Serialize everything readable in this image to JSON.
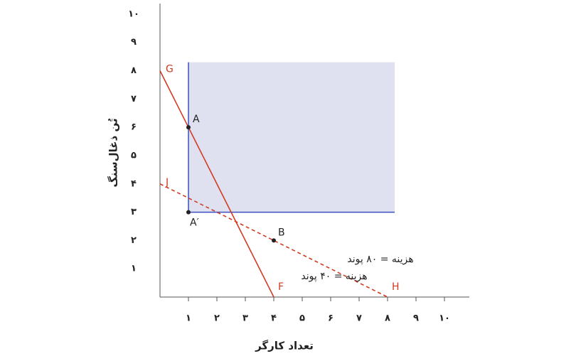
{
  "chart_data": {
    "type": "line",
    "x_label": "تعداد کارگر",
    "y_label": "تُن ذغال‌سنگ",
    "xlim": [
      0,
      11
    ],
    "ylim": [
      0,
      10.5
    ],
    "xticks": [
      {
        "value": 1,
        "label": "۱"
      },
      {
        "value": 2,
        "label": "۲"
      },
      {
        "value": 3,
        "label": "۳"
      },
      {
        "value": 4,
        "label": "۴"
      },
      {
        "value": 5,
        "label": "۵"
      },
      {
        "value": 6,
        "label": "۶"
      },
      {
        "value": 7,
        "label": "۷"
      },
      {
        "value": 8,
        "label": "۸"
      },
      {
        "value": 9,
        "label": "۹"
      },
      {
        "value": 10,
        "label": "۱۰"
      }
    ],
    "yticks": [
      {
        "value": 1,
        "label": "۱"
      },
      {
        "value": 2,
        "label": "۲"
      },
      {
        "value": 3,
        "label": "۳"
      },
      {
        "value": 4,
        "label": "۴"
      },
      {
        "value": 5,
        "label": "۵"
      },
      {
        "value": 6,
        "label": "۶"
      },
      {
        "value": 7,
        "label": "۷"
      },
      {
        "value": 8,
        "label": "۸"
      },
      {
        "value": 9,
        "label": "۹"
      },
      {
        "value": 10,
        "label": "۱۰"
      }
    ],
    "region": {
      "color": "#3a4fc2",
      "fill": "#dfe1f0",
      "xlim": [
        1,
        8.25
      ],
      "ylim": [
        3,
        8.3
      ]
    },
    "series": [
      {
        "start_label": "G",
        "end_label": "F",
        "color": "#d23b21",
        "dashed": false,
        "x": [
          0,
          4
        ],
        "values": [
          8,
          0
        ]
      },
      {
        "start_label": "J",
        "end_label": "H",
        "color": "#d23b21",
        "dashed": true,
        "x": [
          0,
          8
        ],
        "values": [
          4,
          0
        ]
      }
    ],
    "points": [
      {
        "label": "A",
        "x": 1,
        "y": 6
      },
      {
        "label": "A′",
        "x": 1,
        "y": 3
      },
      {
        "label": "B",
        "x": 4,
        "y": 2
      }
    ],
    "annotations": [
      "هزینه = ۸۰ پوند",
      "هزینه = ۴۰ پوند"
    ]
  }
}
